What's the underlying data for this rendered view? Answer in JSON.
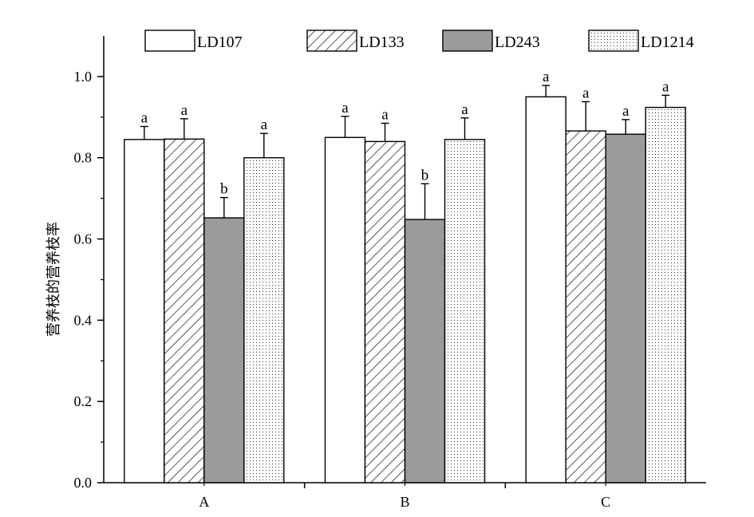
{
  "chart_data": {
    "type": "bar",
    "title": "",
    "xlabel": "",
    "ylabel": "营养枝的营养枝率",
    "ylim": [
      0,
      1.1
    ],
    "yticks": [
      "0.0",
      "0.2",
      "0.4",
      "0.6",
      "0.8",
      "1.0"
    ],
    "categories": [
      "A",
      "B",
      "C"
    ],
    "legend_position": "top",
    "grid": false,
    "series": [
      {
        "name": "LD107",
        "pattern": "white",
        "color": "#ffffff",
        "values": [
          0.845,
          0.85,
          0.95
        ],
        "errors": [
          0.032,
          0.052,
          0.028
        ],
        "labels": [
          "a",
          "a",
          "a"
        ]
      },
      {
        "name": "LD133",
        "pattern": "diagonal-hatch",
        "color": "#ffffff",
        "values": [
          0.846,
          0.84,
          0.866
        ],
        "errors": [
          0.05,
          0.045,
          0.072
        ],
        "labels": [
          "a",
          "a",
          "a"
        ]
      },
      {
        "name": "LD243",
        "pattern": "solid-gray",
        "color": "#9b9b9b",
        "values": [
          0.652,
          0.648,
          0.858
        ],
        "errors": [
          0.05,
          0.088,
          0.036
        ],
        "labels": [
          "b",
          "b",
          "a"
        ]
      },
      {
        "name": "LD1214",
        "pattern": "dots",
        "color": "#ffffff",
        "values": [
          0.8,
          0.845,
          0.924
        ],
        "errors": [
          0.06,
          0.053,
          0.03
        ],
        "labels": [
          "a",
          "a",
          "a"
        ]
      }
    ]
  }
}
